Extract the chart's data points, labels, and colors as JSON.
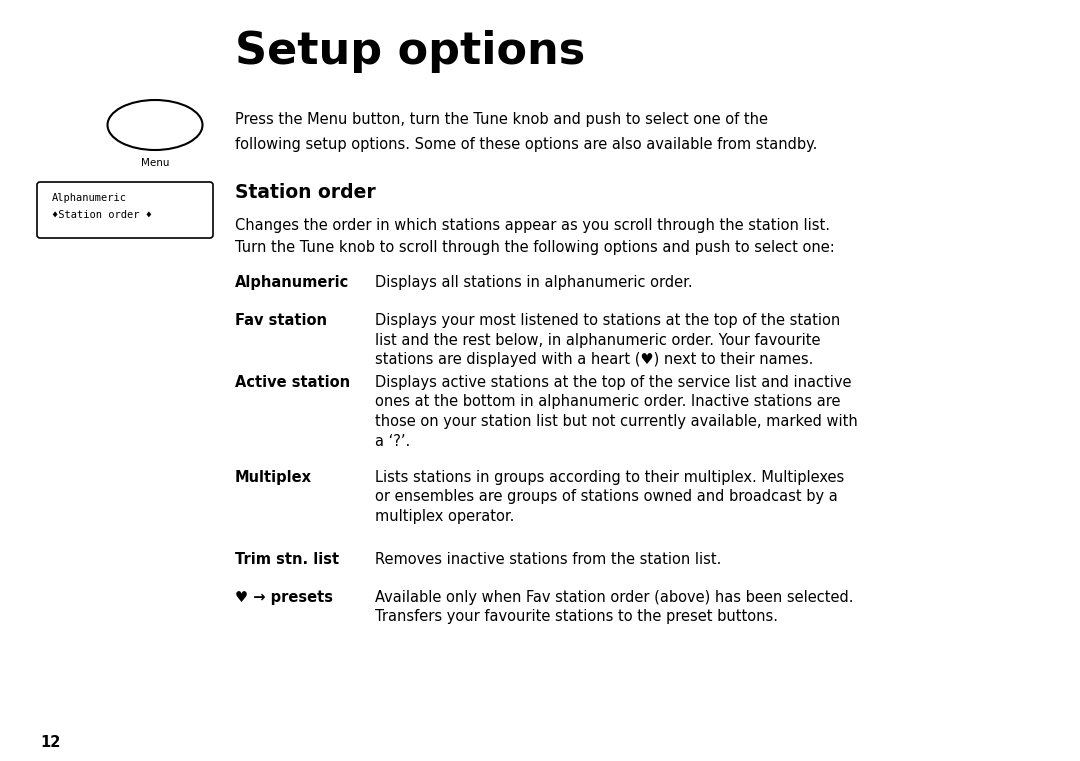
{
  "title": "Setup options",
  "background_color": "#ffffff",
  "text_color": "#000000",
  "page_number": "12",
  "intro_line1": "Press the Menu button, turn the Tune knob and push to select one of the",
  "intro_line2": "following setup options. Some of these options are also available from standby.",
  "menu_label": "Menu",
  "lcd_line1": "Alphanumeric",
  "lcd_line2": "♦Station order ♦",
  "section_title": "Station order",
  "section_intro1": "Changes the order in which stations appear as you scroll through the station list.",
  "section_intro2": "Turn the Tune knob to scroll through the following options and push to select one:",
  "items": [
    {
      "term": "Alphanumeric",
      "desc": "Displays all stations in alphanumeric order.",
      "desc_lines": [
        "Displays all stations in alphanumeric order."
      ]
    },
    {
      "term": "Fav station",
      "desc_lines": [
        "Displays your most listened to stations at the top of the station",
        "list and the rest below, in alphanumeric order. Your favourite",
        "stations are displayed with a heart (♥) next to their names."
      ]
    },
    {
      "term": "Active station",
      "desc_lines": [
        "Displays active stations at the top of the service list and inactive",
        "ones at the bottom in alphanumeric order. Inactive stations are",
        "those on your station list but not currently available, marked with",
        "a ‘?’."
      ]
    },
    {
      "term": "Multiplex",
      "desc_lines": [
        "Lists stations in groups according to their multiplex. Multiplexes",
        "or ensembles are groups of stations owned and broadcast by a",
        "multiplex operator."
      ]
    },
    {
      "term": "Trim stn. list",
      "desc_lines": [
        "Removes inactive stations from the station list."
      ]
    },
    {
      "term": "♥ → presets",
      "desc_lines": [
        "Available only when Fav station order (above) has been selected.",
        "Transfers your favourite stations to the preset buttons."
      ]
    }
  ],
  "figwidth": 10.8,
  "figheight": 7.61,
  "dpi": 100
}
